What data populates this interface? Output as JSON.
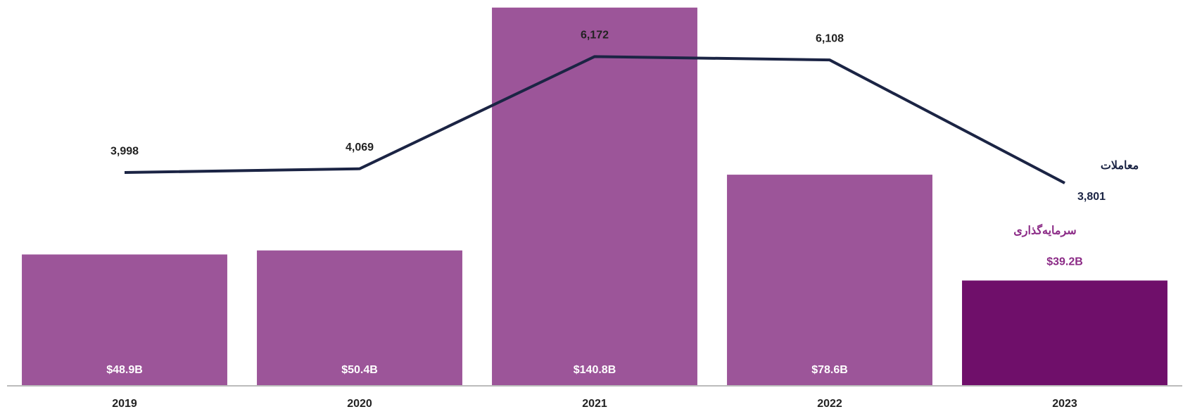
{
  "chart_data": {
    "type": "combo",
    "categories": [
      "2019",
      "2020",
      "2021",
      "2022",
      "2023"
    ],
    "series": [
      {
        "name": "سرمایه‌گذاری",
        "type": "bar",
        "colors": [
          "#9c5599",
          "#9c5599",
          "#9c5599",
          "#9c5599",
          "#6f0f6a"
        ],
        "values": [
          48.9,
          50.4,
          140.8,
          78.6,
          39.2
        ],
        "value_labels": [
          "$48.9B",
          "$50.4B",
          "$140.8B",
          "$78.6B",
          "$39.2B"
        ]
      },
      {
        "name": "معاملات",
        "type": "line",
        "color": "#1b2444",
        "axis": "y2",
        "values": [
          3998,
          4069,
          6172,
          6108,
          3801
        ],
        "value_labels": [
          "3,998",
          "4,069",
          "6,172",
          "6,108",
          "3,801"
        ]
      }
    ],
    "ylim": [
      0,
      141
    ],
    "y2lim": [
      0,
      7100
    ]
  }
}
